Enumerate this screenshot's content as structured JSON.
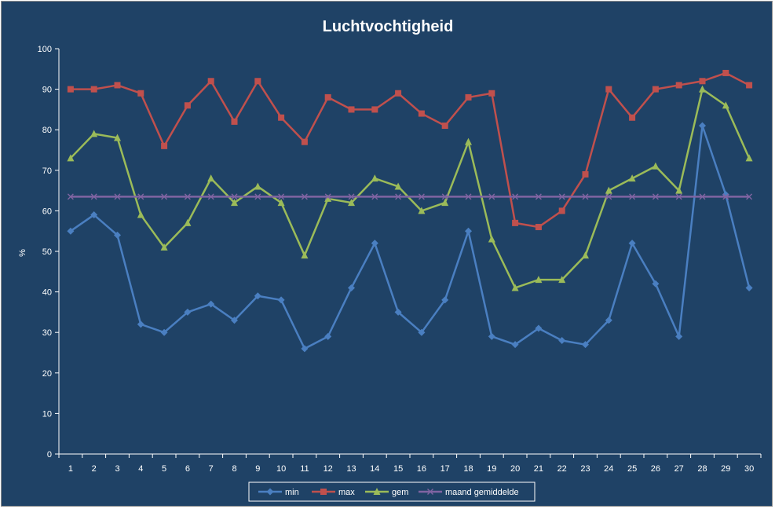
{
  "chart_data": {
    "type": "line",
    "title": "Luchtvochtigheid",
    "ylabel": "%",
    "xlabel": "",
    "ylim": [
      0,
      100
    ],
    "yticks": [
      0,
      10,
      20,
      30,
      40,
      50,
      60,
      70,
      80,
      90,
      100
    ],
    "categories": [
      "1",
      "2",
      "3",
      "4",
      "5",
      "6",
      "7",
      "8",
      "9",
      "10",
      "11",
      "12",
      "13",
      "14",
      "15",
      "16",
      "17",
      "18",
      "19",
      "20",
      "21",
      "22",
      "23",
      "24",
      "25",
      "26",
      "27",
      "28",
      "29",
      "30"
    ],
    "grid": false,
    "legend_position": "bottom",
    "series": [
      {
        "name": "min",
        "color": "#4a7fc1",
        "marker": "diamond",
        "values": [
          55,
          59,
          54,
          32,
          30,
          35,
          37,
          33,
          39,
          38,
          26,
          29,
          41,
          52,
          35,
          30,
          38,
          55,
          29,
          27,
          31,
          28,
          27,
          33,
          52,
          42,
          29,
          81,
          64,
          41
        ]
      },
      {
        "name": "max",
        "color": "#c0504d",
        "marker": "square",
        "values": [
          90,
          90,
          91,
          89,
          76,
          86,
          92,
          82,
          92,
          83,
          77,
          88,
          85,
          85,
          89,
          84,
          81,
          88,
          89,
          57,
          56,
          60,
          69,
          90,
          83,
          90,
          91,
          92,
          94,
          91
        ]
      },
      {
        "name": "gem",
        "color": "#9bbb59",
        "marker": "triangle",
        "values": [
          73,
          79,
          78,
          59,
          51,
          57,
          68,
          62,
          66,
          62,
          49,
          63,
          62,
          68,
          66,
          60,
          62,
          77,
          53,
          41,
          43,
          43,
          49,
          65,
          68,
          71,
          65,
          90,
          86,
          73
        ]
      },
      {
        "name": "maand gemiddelde",
        "color": "#8064a2",
        "marker": "x",
        "values": [
          63.5,
          63.5,
          63.5,
          63.5,
          63.5,
          63.5,
          63.5,
          63.5,
          63.5,
          63.5,
          63.5,
          63.5,
          63.5,
          63.5,
          63.5,
          63.5,
          63.5,
          63.5,
          63.5,
          63.5,
          63.5,
          63.5,
          63.5,
          63.5,
          63.5,
          63.5,
          63.5,
          63.5,
          63.5,
          63.5
        ]
      }
    ]
  }
}
